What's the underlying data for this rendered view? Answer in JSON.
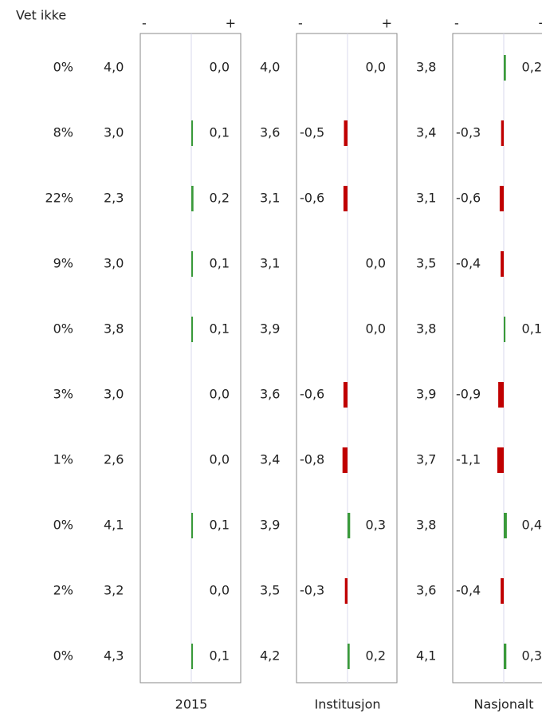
{
  "header": {
    "unknown": "Vet ikke",
    "minus": "-",
    "plus": "+"
  },
  "colors": {
    "positive": "#3a9a3a",
    "negative": "#c00000",
    "frame": "#888888",
    "zero_line": "#d8d8ee"
  },
  "unknown_pct": [
    "0%",
    "8%",
    "22%",
    "9%",
    "0%",
    "3%",
    "1%",
    "0%",
    "2%",
    "0%"
  ],
  "panels": [
    {
      "label": "2015",
      "means": [
        "4,0",
        "3,0",
        "2,3",
        "3,0",
        "3,8",
        "3,0",
        "2,6",
        "4,1",
        "3,2",
        "4,3"
      ],
      "diffs": [
        {
          "value": 0,
          "label": "0,0"
        },
        {
          "value": 0.1,
          "label": "0,1"
        },
        {
          "value": 0.2,
          "label": "0,2"
        },
        {
          "value": 0.1,
          "label": "0,1"
        },
        {
          "value": 0.1,
          "label": "0,1"
        },
        {
          "value": 0,
          "label": "0,0"
        },
        {
          "value": 0,
          "label": "0,0"
        },
        {
          "value": 0.1,
          "label": "0,1"
        },
        {
          "value": 0,
          "label": "0,0"
        },
        {
          "value": 0.1,
          "label": "0,1"
        }
      ]
    },
    {
      "label": "Institusjon",
      "means": [
        "4,0",
        "3,6",
        "3,1",
        "3,1",
        "3,9",
        "3,6",
        "3,4",
        "3,9",
        "3,5",
        "4,2"
      ],
      "diffs": [
        {
          "value": 0,
          "label": "0,0"
        },
        {
          "value": -0.5,
          "label": "-0,5"
        },
        {
          "value": -0.6,
          "label": "-0,6"
        },
        {
          "value": 0,
          "label": "0,0"
        },
        {
          "value": 0,
          "label": "0,0"
        },
        {
          "value": -0.6,
          "label": "-0,6"
        },
        {
          "value": -0.8,
          "label": "-0,8"
        },
        {
          "value": 0.3,
          "label": "0,3"
        },
        {
          "value": -0.3,
          "label": "-0,3"
        },
        {
          "value": 0.2,
          "label": "0,2"
        }
      ]
    },
    {
      "label": "Nasjonalt",
      "means": [
        "3,8",
        "3,4",
        "3,1",
        "3,5",
        "3,8",
        "3,9",
        "3,7",
        "3,8",
        "3,6",
        "4,1"
      ],
      "diffs": [
        {
          "value": 0.2,
          "label": "0,2"
        },
        {
          "value": -0.3,
          "label": "-0,3"
        },
        {
          "value": -0.6,
          "label": "-0,6"
        },
        {
          "value": -0.4,
          "label": "-0,4"
        },
        {
          "value": 0.1,
          "label": "0,1"
        },
        {
          "value": -0.9,
          "label": "-0,9"
        },
        {
          "value": -1.1,
          "label": "-1,1"
        },
        {
          "value": 0.4,
          "label": "0,4"
        },
        {
          "value": -0.4,
          "label": "-0,4"
        },
        {
          "value": 0.3,
          "label": "0,3"
        }
      ]
    }
  ]
}
